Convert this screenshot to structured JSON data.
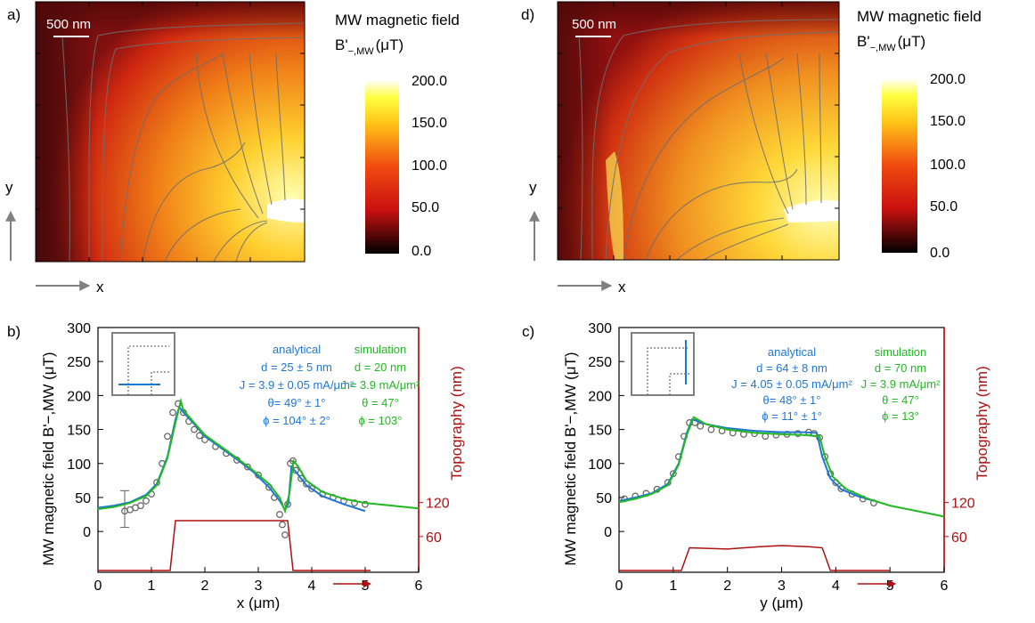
{
  "panels": {
    "a": {
      "letter": "a)",
      "scalebar": "500 nm",
      "cbar_title_1": "MW magnetic field",
      "cbar_title_2": "B'",
      "cbar_title_sub": "−,MW",
      "cbar_title_unit": "(μT)",
      "cbar_ticks": [
        "200.0",
        "150.0",
        "100.0",
        "50.0",
        "0.0"
      ],
      "axis_y": "y",
      "axis_x": "x"
    },
    "d": {
      "letter": "d)",
      "scalebar": "500 nm",
      "cbar_title_1": "MW magnetic field",
      "cbar_title_2": "B'",
      "cbar_title_sub": "−,MW",
      "cbar_title_unit": "(μT)",
      "cbar_ticks": [
        "200.0",
        "150.0",
        "100.0",
        "50.0",
        "0.0"
      ],
      "axis_y": "y",
      "axis_x": "x"
    },
    "b": {
      "letter": "b)",
      "analytical": [
        "analytical",
        "d = 25 ± 5 nm",
        "J = 3.9 ± 0.05 mA/μm²",
        "θ= 49° ± 1°",
        "ϕ = 104° ± 2°"
      ],
      "simulation": [
        "simulation",
        "d = 20  nm",
        "J = 3.9 mA/μm²",
        "θ = 47°",
        "ϕ = 103°"
      ]
    },
    "c": {
      "letter": "c)",
      "analytical": [
        "analytical",
        "d = 64 ± 8 nm",
        "J = 4.05 ± 0.05 mA/μm²",
        "θ= 48° ± 1°",
        "ϕ = 11° ± 1°"
      ],
      "simulation": [
        "simulation",
        "d = 70  nm",
        "J = 3.9 mA/μm²",
        "θ = 47°",
        "ϕ = 13°"
      ]
    }
  },
  "colors": {
    "analytical": "#1f77d4",
    "simulation": "#22b822",
    "topography": "#b01010",
    "data": "#606060"
  },
  "chart_data": [
    {
      "id": "b",
      "type": "line",
      "xlabel": "x (μm)",
      "ylabel": "MW magnetic field B'−,MW (μT)",
      "ylabel_right": "Topography (nm)",
      "xlim": [
        0,
        6
      ],
      "ylim": [
        -60,
        300
      ],
      "xticks": [
        0,
        1,
        2,
        3,
        4,
        5,
        6
      ],
      "yticks": [
        0,
        50,
        100,
        150,
        200,
        250,
        300
      ],
      "yticks_right": [
        60,
        120
      ],
      "series": [
        {
          "name": "analytical",
          "x": [
            0,
            0.3,
            0.6,
            0.9,
            1.1,
            1.3,
            1.45,
            1.52,
            1.6,
            1.8,
            2.0,
            2.3,
            2.6,
            2.9,
            3.2,
            3.4,
            3.5,
            3.56,
            3.62,
            3.7,
            3.9,
            4.2,
            4.6,
            5.0
          ],
          "y": [
            35,
            38,
            43,
            54,
            70,
            110,
            165,
            183,
            175,
            158,
            140,
            123,
            106,
            88,
            65,
            45,
            32,
            40,
            95,
            88,
            68,
            52,
            40,
            30
          ]
        },
        {
          "name": "simulation",
          "x": [
            0,
            0.3,
            0.6,
            0.9,
            1.1,
            1.3,
            1.45,
            1.55,
            1.6,
            1.8,
            2.0,
            2.3,
            2.6,
            2.9,
            3.2,
            3.4,
            3.5,
            3.58,
            3.66,
            3.75,
            3.9,
            4.2,
            4.6,
            5.0,
            5.5,
            6.0
          ],
          "y": [
            33,
            36,
            42,
            52,
            68,
            108,
            160,
            192,
            178,
            160,
            142,
            125,
            108,
            90,
            70,
            50,
            30,
            55,
            104,
            95,
            75,
            58,
            48,
            42,
            38,
            34
          ]
        },
        {
          "name": "data",
          "x": [
            0.5,
            0.6,
            0.7,
            0.8,
            0.9,
            1.0,
            1.1,
            1.2,
            1.3,
            1.4,
            1.5,
            1.6,
            1.7,
            1.8,
            1.9,
            2.0,
            2.2,
            2.4,
            2.6,
            2.8,
            3.0,
            3.2,
            3.3,
            3.4,
            3.45,
            3.5,
            3.55,
            3.6,
            3.65,
            3.7,
            3.8,
            3.9,
            4.0,
            4.2,
            4.4,
            4.6,
            4.8,
            5.0
          ],
          "y": [
            30,
            32,
            35,
            38,
            45,
            55,
            72,
            100,
            140,
            175,
            188,
            175,
            162,
            150,
            141,
            135,
            125,
            115,
            105,
            95,
            83,
            65,
            50,
            25,
            10,
            -5,
            40,
            100,
            104,
            90,
            78,
            70,
            63,
            55,
            50,
            45,
            42,
            40
          ],
          "err": {
            "x": 0.5,
            "y": 33,
            "e": 27
          }
        }
      ],
      "topography": {
        "x": [
          0,
          1.35,
          1.45,
          3.55,
          3.65,
          5.1
        ],
        "y": [
          0,
          0,
          88,
          88,
          0,
          0
        ]
      },
      "arrow": {
        "x0": 4.4,
        "x1": 5.1,
        "y": -77
      }
    },
    {
      "id": "c",
      "type": "line",
      "xlabel": "y (μm)",
      "ylabel": "MW magnetic field B'−,MW (μT)",
      "ylabel_right": "Topography (nm)",
      "xlim": [
        0,
        6
      ],
      "ylim": [
        -60,
        300
      ],
      "xticks": [
        0,
        1,
        2,
        3,
        4,
        5,
        6
      ],
      "yticks": [
        0,
        50,
        100,
        150,
        200,
        250,
        300
      ],
      "yticks_right": [
        60,
        120
      ],
      "series": [
        {
          "name": "analytical",
          "x": [
            0,
            0.3,
            0.6,
            0.9,
            1.1,
            1.25,
            1.35,
            1.6,
            2.0,
            2.5,
            3.0,
            3.4,
            3.65,
            3.75,
            3.9,
            4.1,
            4.4,
            4.7
          ],
          "y": [
            45,
            50,
            56,
            70,
            100,
            145,
            165,
            158,
            152,
            148,
            146,
            146,
            145,
            110,
            78,
            62,
            52,
            45
          ]
        },
        {
          "name": "simulation",
          "x": [
            0,
            0.3,
            0.6,
            0.9,
            1.1,
            1.25,
            1.38,
            1.6,
            2.0,
            2.5,
            3.0,
            3.4,
            3.7,
            3.8,
            3.95,
            4.2,
            4.6,
            5.0,
            5.5,
            6.0
          ],
          "y": [
            43,
            48,
            55,
            68,
            98,
            142,
            168,
            158,
            150,
            145,
            143,
            142,
            140,
            110,
            80,
            62,
            48,
            38,
            30,
            22
          ]
        },
        {
          "name": "data",
          "x": [
            0.1,
            0.3,
            0.5,
            0.7,
            0.9,
            1.0,
            1.1,
            1.2,
            1.3,
            1.4,
            1.5,
            1.7,
            1.9,
            2.1,
            2.3,
            2.5,
            2.7,
            2.9,
            3.1,
            3.3,
            3.5,
            3.6,
            3.7,
            3.8,
            3.9,
            4.0,
            4.1,
            4.3,
            4.5,
            4.7
          ],
          "y": [
            48,
            52,
            56,
            62,
            72,
            85,
            110,
            140,
            160,
            160,
            155,
            150,
            148,
            145,
            143,
            144,
            140,
            142,
            143,
            144,
            146,
            144,
            138,
            110,
            85,
            72,
            63,
            55,
            48,
            42
          ]
        }
      ],
      "topography": {
        "x": [
          0,
          1.15,
          1.3,
          2.0,
          2.6,
          3.0,
          3.5,
          3.75,
          3.9,
          4.0,
          5.0
        ],
        "y": [
          0,
          0,
          40,
          38,
          42,
          44,
          42,
          40,
          0,
          0,
          0
        ]
      },
      "arrow": {
        "x0": 4.4,
        "x1": 5.1,
        "y": -77
      }
    }
  ]
}
